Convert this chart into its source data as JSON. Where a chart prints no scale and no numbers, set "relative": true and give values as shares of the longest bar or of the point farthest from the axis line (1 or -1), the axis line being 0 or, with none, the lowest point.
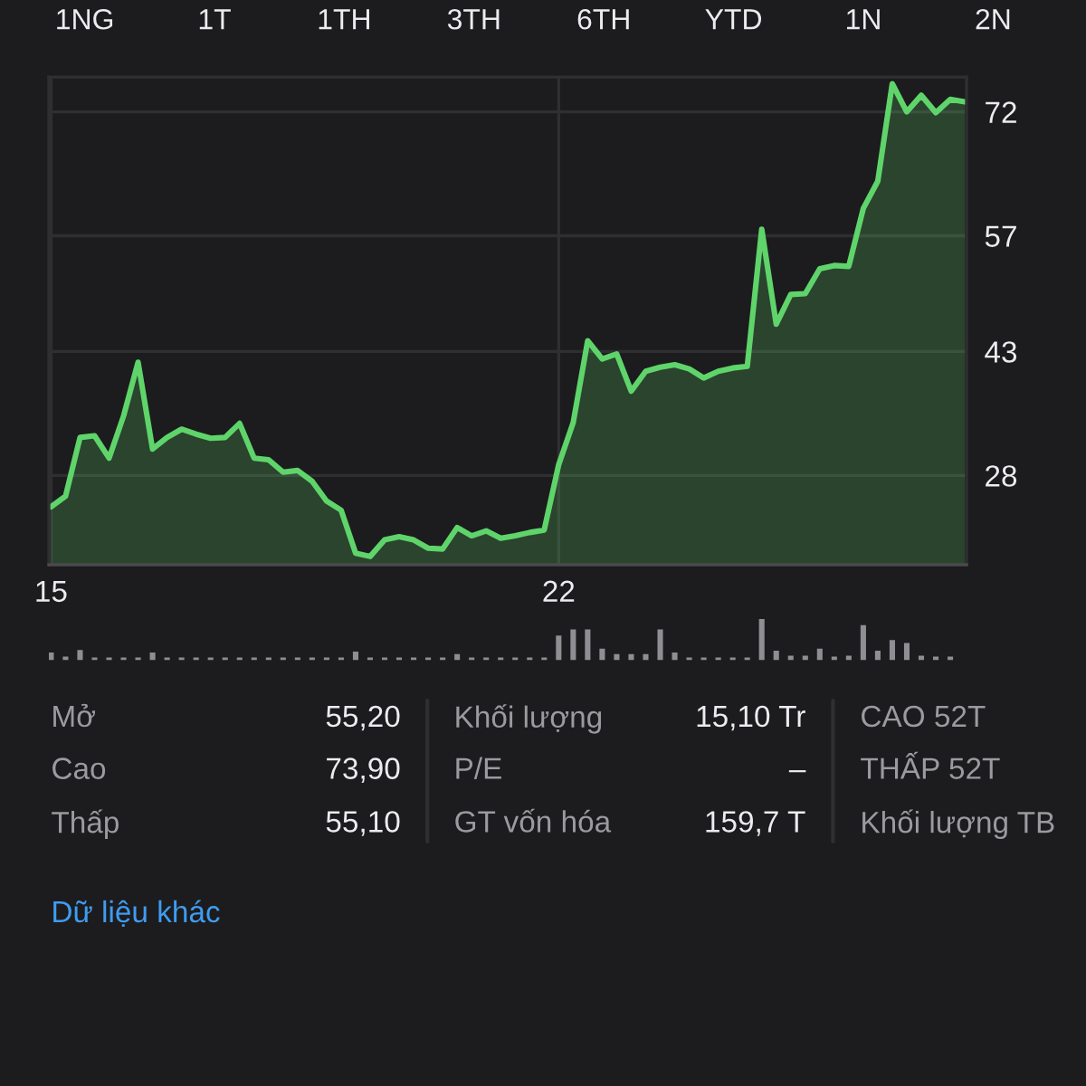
{
  "chart_data": [
    {
      "type": "area",
      "categories": [
        "15",
        null,
        null,
        null,
        null,
        null,
        null,
        null,
        null,
        null,
        null,
        null,
        null,
        null,
        null,
        null,
        null,
        null,
        null,
        null,
        null,
        null,
        null,
        null,
        null,
        null,
        null,
        null,
        null,
        null,
        null,
        null,
        null,
        null,
        null,
        "22",
        null,
        null,
        null,
        null,
        null,
        null,
        null,
        null,
        null,
        null,
        null,
        null,
        null,
        null,
        null,
        null,
        null,
        null,
        null,
        null,
        null,
        null,
        null,
        null,
        null,
        null,
        null,
        null
      ],
      "series": [
        {
          "color": "#5fd46a",
          "values": [
            24.2,
            25.5,
            32.6,
            32.8,
            30.1,
            35.2,
            41.7,
            31.2,
            32.6,
            33.6,
            33.0,
            32.5,
            32.6,
            34.3,
            30.1,
            29.9,
            28.4,
            28.6,
            27.3,
            24.9,
            23.8,
            18.6,
            18.2,
            20.2,
            20.6,
            20.2,
            19.2,
            19.1,
            21.7,
            20.7,
            21.3,
            20.4,
            20.7,
            21.1,
            21.4,
            29.3,
            34.4,
            44.3,
            42.1,
            42.7,
            38.2,
            40.6,
            41.1,
            41.4,
            40.9,
            39.8,
            40.6,
            41.0,
            41.2,
            57.8,
            46.3,
            49.9,
            50.0,
            53.0,
            53.4,
            53.3,
            60.3,
            63.6,
            75.4,
            72.0,
            74.0,
            71.9,
            73.5,
            73.2
          ]
        }
      ],
      "ylim": [
        17.2,
        76.2
      ],
      "yticks": [
        28,
        43,
        57,
        72
      ],
      "grid": true,
      "annotations": [
        "1NG",
        "1T",
        "1TH",
        "3TH",
        "6TH",
        "YTD",
        "1N",
        "2N"
      ]
    },
    {
      "type": "bar",
      "relative": true,
      "color": "#8e8e93",
      "categories": [
        null,
        null,
        null,
        null,
        null,
        null,
        null,
        null,
        null,
        null,
        null,
        null,
        null,
        null,
        null,
        null,
        null,
        null,
        null,
        null,
        null,
        null,
        null,
        null,
        null,
        null,
        null,
        null,
        null,
        null,
        null,
        null,
        null,
        null,
        null,
        null,
        null,
        null,
        null,
        null,
        null,
        null,
        null,
        null,
        null,
        null,
        null,
        null,
        null,
        null,
        null,
        null,
        null,
        null,
        null,
        null,
        null,
        null,
        null,
        null,
        null,
        null,
        null,
        null
      ],
      "values": [
        0.19,
        0.09,
        0.25,
        0.07,
        0.07,
        0.07,
        0.07,
        0.19,
        0.07,
        0.07,
        0.07,
        0.07,
        0.07,
        0.07,
        0.07,
        0.07,
        0.07,
        0.07,
        0.07,
        0.07,
        0.07,
        0.21,
        0.07,
        0.07,
        0.07,
        0.07,
        0.07,
        0.07,
        0.15,
        0.07,
        0.07,
        0.07,
        0.07,
        0.07,
        0.07,
        0.6,
        0.75,
        0.75,
        0.28,
        0.15,
        0.15,
        0.15,
        0.75,
        0.19,
        0.07,
        0.07,
        0.07,
        0.07,
        0.07,
        1,
        0.23,
        0.11,
        0.11,
        0.28,
        0.09,
        0.11,
        0.85,
        0.23,
        0.49,
        0.42,
        0.11,
        0.09,
        0.09,
        null
      ],
      "annotations": [
        "Mở",
        "Cao",
        "Thấp",
        "55,20",
        "73,90",
        "55,10",
        "Khối lượng",
        "P/E",
        "GT vốn hóa",
        "15,10 Tr",
        "–",
        "159,7 T",
        "CAO 52T",
        "THẤP 52T",
        "Khối lượng TB",
        "Dữ liệu khác"
      ]
    }
  ]
}
